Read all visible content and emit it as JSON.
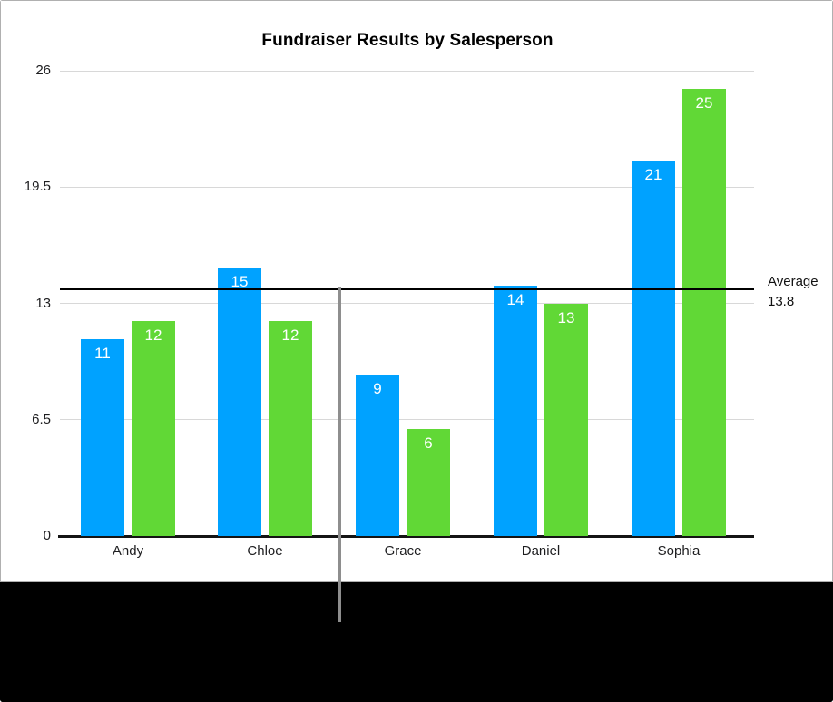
{
  "chart_data": {
    "type": "bar",
    "title": "Fundraiser Results by Salesperson",
    "categories": [
      "Andy",
      "Chloe",
      "Grace",
      "Daniel",
      "Sophia"
    ],
    "series": [
      {
        "name": "blue-series",
        "color": "#00a2ff",
        "values": [
          11,
          15,
          9,
          14,
          21
        ]
      },
      {
        "name": "green-series",
        "color": "#61d836",
        "values": [
          12,
          12,
          6,
          13,
          25
        ]
      }
    ],
    "bar_labels": [
      [
        "11",
        "15",
        "9",
        "14",
        "21"
      ],
      [
        "12",
        "12",
        "6",
        "13",
        "25"
      ]
    ],
    "y_ticks": [
      {
        "value": 0,
        "label": "0"
      },
      {
        "value": 6.5,
        "label": "6.5"
      },
      {
        "value": 13,
        "label": "13"
      },
      {
        "value": 19.5,
        "label": "19.5"
      },
      {
        "value": 26,
        "label": "26"
      }
    ],
    "ylim": [
      0,
      26
    ],
    "xlabel": "",
    "ylabel": "",
    "grid": true,
    "legend": "none",
    "average_line": {
      "value": 13.8,
      "label": "Average",
      "value_label": "13.8",
      "color": "#000000"
    }
  },
  "colors": {
    "gridline": "#d8d8d8",
    "baseline": "#141414",
    "pointer_line": "#8e8e8e",
    "panel_background": "#ffffff",
    "panel_border": "#b0b0b0",
    "bottom_band": "#000000",
    "bar_blue": "#00a2ff",
    "bar_green": "#61d836"
  }
}
